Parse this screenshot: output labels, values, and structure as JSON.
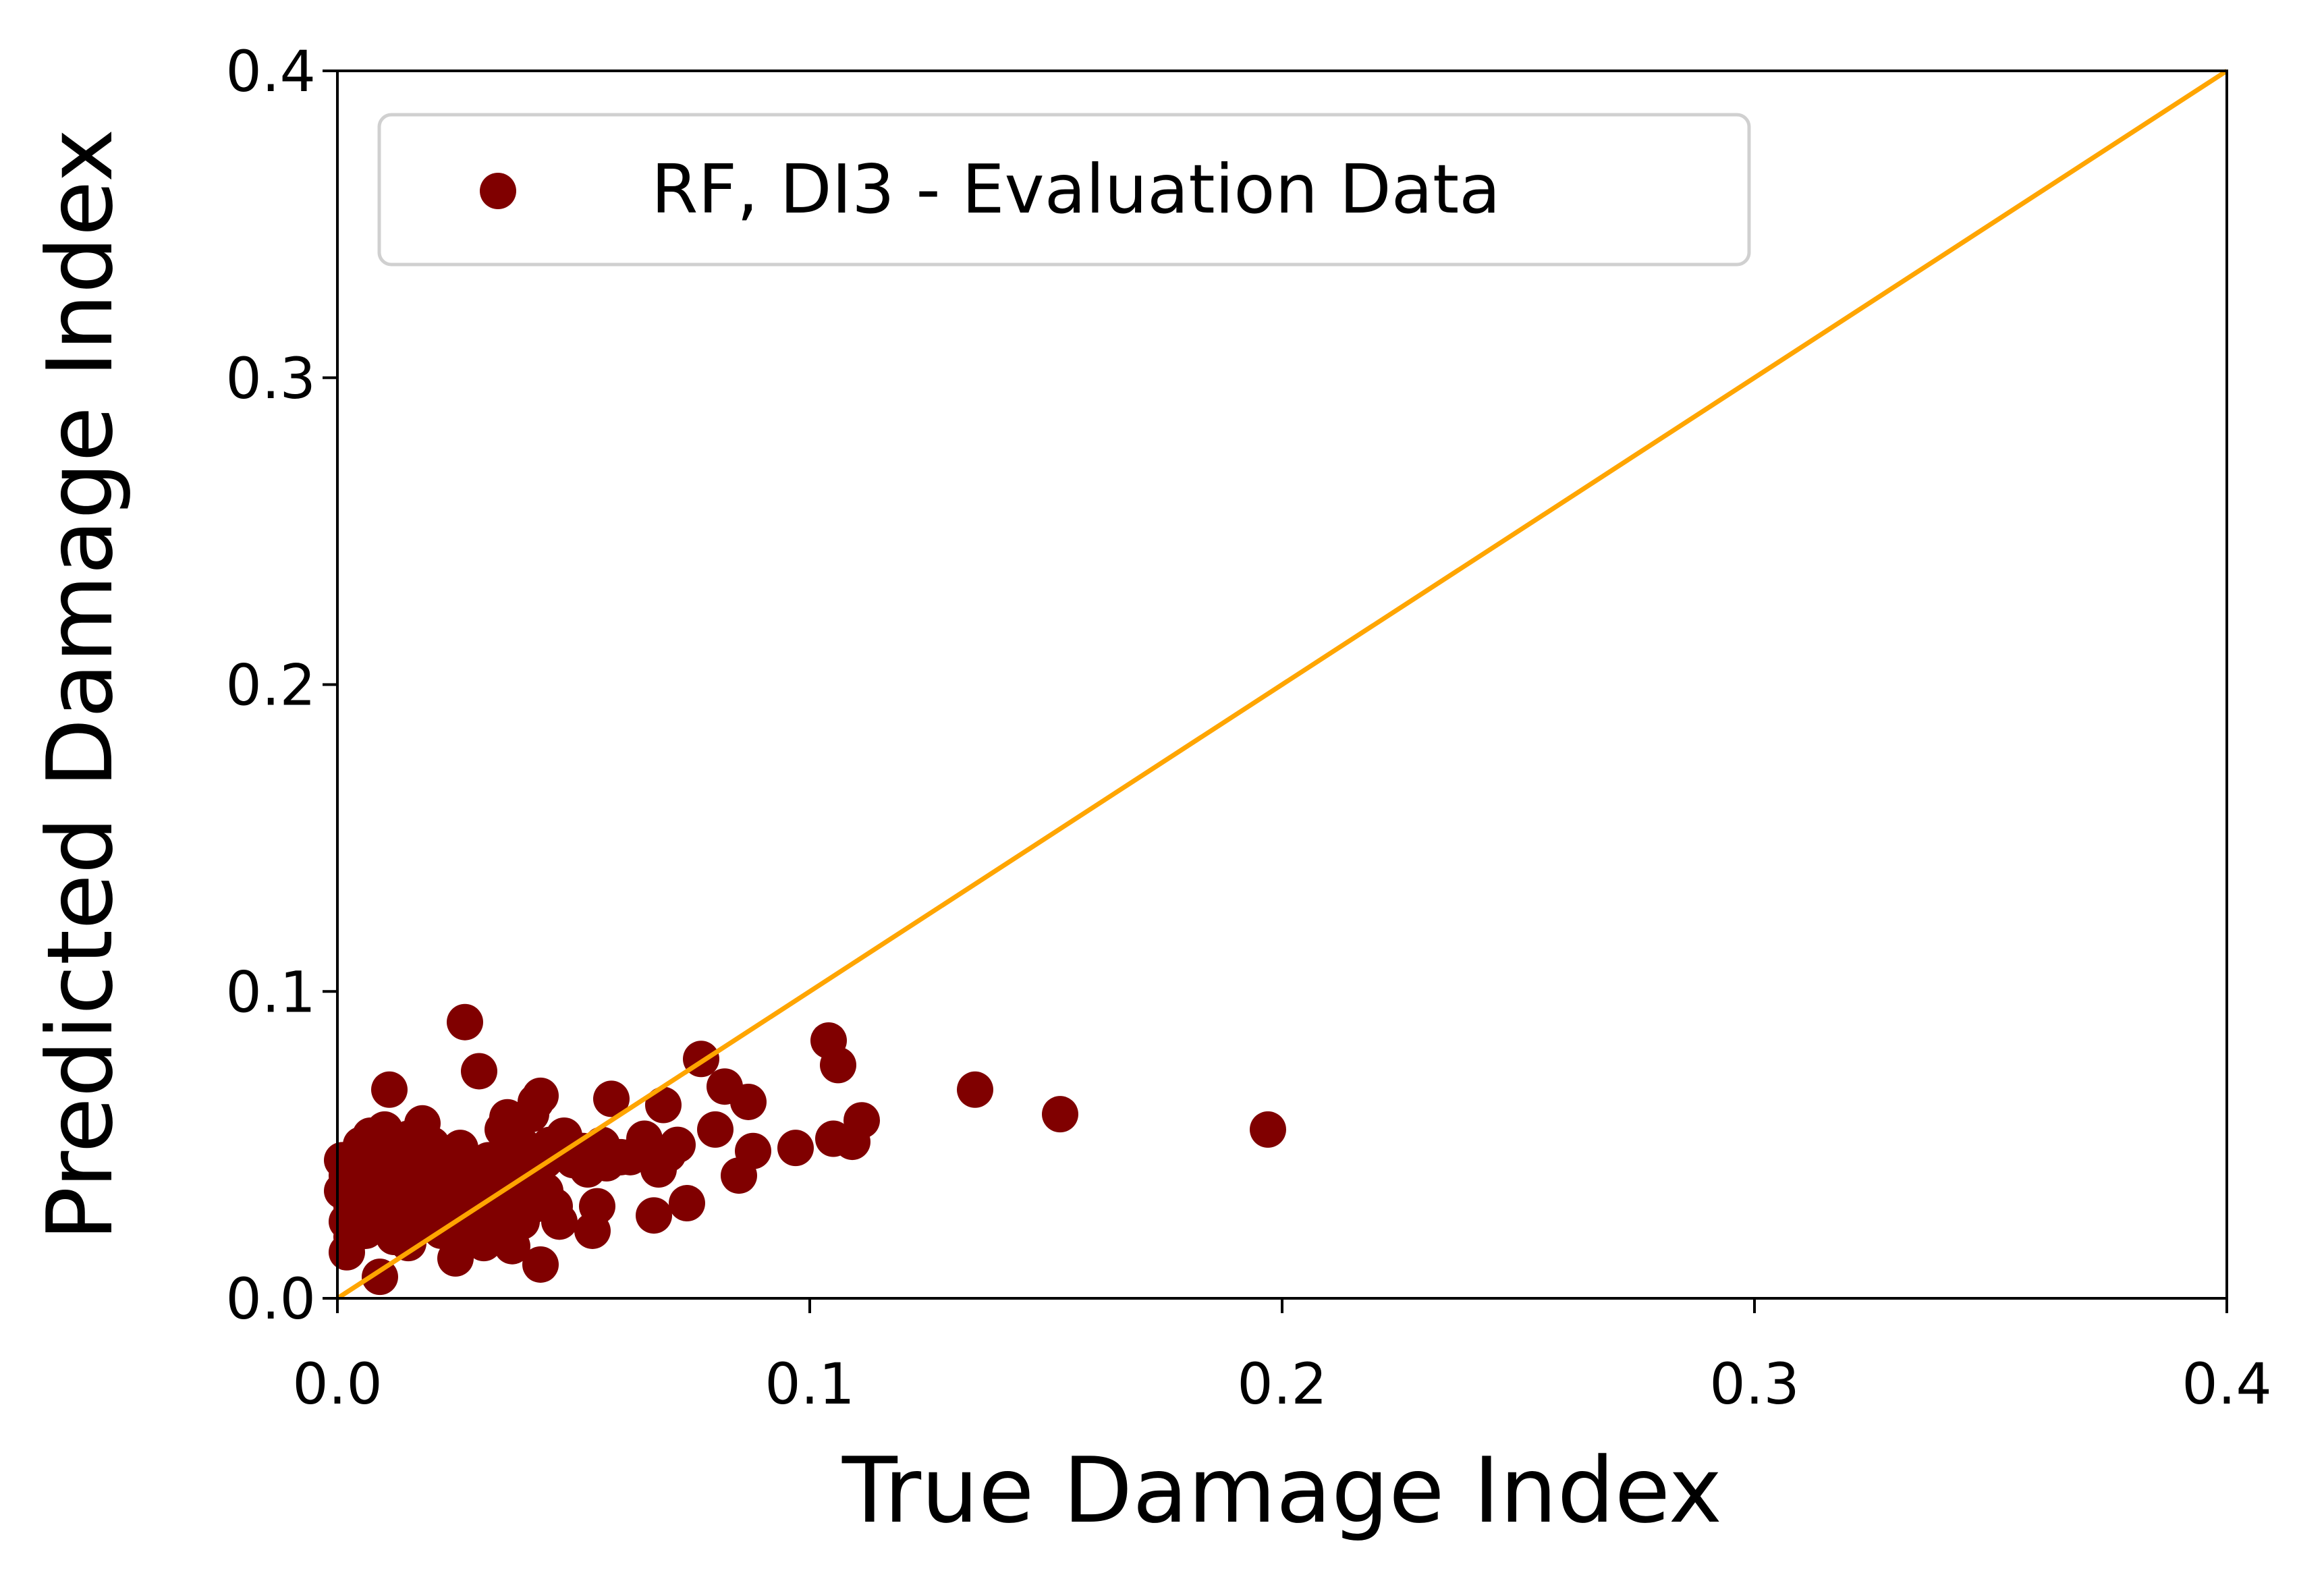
{
  "chart_data": {
    "type": "scatter",
    "xlabel": "True Damage Index",
    "ylabel": "Predicted Damage Index",
    "xlim": [
      0.0,
      0.4
    ],
    "ylim": [
      0.0,
      0.4
    ],
    "x_ticks": [
      "0.0",
      "0.1",
      "0.2",
      "0.3",
      "0.4"
    ],
    "y_ticks": [
      "0.0",
      "0.1",
      "0.2",
      "0.3",
      "0.4"
    ],
    "grid": false,
    "legend_position": "top-left",
    "colors": {
      "points": "#800000",
      "reference_line": "#FFA500"
    },
    "reference_line": {
      "x": [
        0.0,
        0.4
      ],
      "y": [
        0.0,
        0.4
      ]
    },
    "series": [
      {
        "name": "RF, DI3 - Evaluation Data",
        "points": [
          [
            0.001,
            0.045
          ],
          [
            0.001,
            0.035
          ],
          [
            0.002,
            0.025
          ],
          [
            0.002,
            0.015
          ],
          [
            0.002,
            0.04
          ],
          [
            0.003,
            0.03
          ],
          [
            0.003,
            0.02
          ],
          [
            0.004,
            0.045
          ],
          [
            0.004,
            0.035
          ],
          [
            0.005,
            0.028
          ],
          [
            0.005,
            0.05
          ],
          [
            0.006,
            0.04
          ],
          [
            0.006,
            0.022
          ],
          [
            0.007,
            0.035
          ],
          [
            0.007,
            0.053
          ],
          [
            0.008,
            0.045
          ],
          [
            0.008,
            0.03
          ],
          [
            0.009,
            0.007
          ],
          [
            0.009,
            0.038
          ],
          [
            0.01,
            0.055
          ],
          [
            0.01,
            0.025
          ],
          [
            0.011,
            0.042
          ],
          [
            0.011,
            0.068
          ],
          [
            0.012,
            0.033
          ],
          [
            0.012,
            0.02
          ],
          [
            0.013,
            0.047
          ],
          [
            0.013,
            0.028
          ],
          [
            0.014,
            0.038
          ],
          [
            0.015,
            0.052
          ],
          [
            0.015,
            0.018
          ],
          [
            0.016,
            0.04
          ],
          [
            0.016,
            0.03
          ],
          [
            0.017,
            0.035
          ],
          [
            0.017,
            0.045
          ],
          [
            0.018,
            0.057
          ],
          [
            0.018,
            0.025
          ],
          [
            0.019,
            0.042
          ],
          [
            0.019,
            0.033
          ],
          [
            0.02,
            0.05
          ],
          [
            0.02,
            0.038
          ],
          [
            0.021,
            0.028
          ],
          [
            0.021,
            0.045
          ],
          [
            0.022,
            0.035
          ],
          [
            0.022,
            0.022
          ],
          [
            0.023,
            0.042
          ],
          [
            0.023,
            0.03
          ],
          [
            0.024,
            0.037
          ],
          [
            0.024,
            0.047
          ],
          [
            0.025,
            0.013
          ],
          [
            0.025,
            0.032
          ],
          [
            0.026,
            0.049
          ],
          [
            0.026,
            0.04
          ],
          [
            0.027,
            0.09
          ],
          [
            0.027,
            0.028
          ],
          [
            0.028,
            0.036
          ],
          [
            0.028,
            0.044
          ],
          [
            0.029,
            0.02
          ],
          [
            0.029,
            0.033
          ],
          [
            0.03,
            0.074
          ],
          [
            0.03,
            0.04
          ],
          [
            0.031,
            0.018
          ],
          [
            0.031,
            0.03
          ],
          [
            0.032,
            0.045
          ],
          [
            0.032,
            0.025
          ],
          [
            0.033,
            0.038
          ],
          [
            0.033,
            0.032
          ],
          [
            0.034,
            0.042
          ],
          [
            0.034,
            0.022
          ],
          [
            0.035,
            0.055
          ],
          [
            0.035,
            0.028
          ],
          [
            0.036,
            0.059
          ],
          [
            0.036,
            0.035
          ],
          [
            0.037,
            0.017
          ],
          [
            0.037,
            0.045
          ],
          [
            0.038,
            0.04
          ],
          [
            0.038,
            0.03
          ],
          [
            0.039,
            0.05
          ],
          [
            0.039,
            0.025
          ],
          [
            0.04,
            0.035
          ],
          [
            0.04,
            0.044
          ],
          [
            0.041,
            0.06
          ],
          [
            0.041,
            0.03
          ],
          [
            0.042,
            0.064
          ],
          [
            0.042,
            0.04
          ],
          [
            0.043,
            0.011
          ],
          [
            0.043,
            0.066
          ],
          [
            0.044,
            0.045
          ],
          [
            0.044,
            0.035
          ],
          [
            0.045,
            0.05
          ],
          [
            0.046,
            0.03
          ],
          [
            0.047,
            0.025
          ],
          [
            0.048,
            0.053
          ],
          [
            0.05,
            0.045
          ],
          [
            0.052,
            0.048
          ],
          [
            0.053,
            0.042
          ],
          [
            0.054,
            0.022
          ],
          [
            0.055,
            0.03
          ],
          [
            0.056,
            0.05
          ],
          [
            0.057,
            0.044
          ],
          [
            0.058,
            0.065
          ],
          [
            0.06,
            0.046
          ],
          [
            0.062,
            0.046
          ],
          [
            0.065,
            0.052
          ],
          [
            0.067,
            0.027
          ],
          [
            0.068,
            0.042
          ],
          [
            0.069,
            0.063
          ],
          [
            0.07,
            0.047
          ],
          [
            0.072,
            0.05
          ],
          [
            0.074,
            0.031
          ],
          [
            0.077,
            0.078
          ],
          [
            0.08,
            0.055
          ],
          [
            0.082,
            0.069
          ],
          [
            0.085,
            0.04
          ],
          [
            0.087,
            0.064
          ],
          [
            0.088,
            0.048
          ],
          [
            0.097,
            0.049
          ],
          [
            0.104,
            0.084
          ],
          [
            0.105,
            0.052
          ],
          [
            0.106,
            0.076
          ],
          [
            0.109,
            0.051
          ],
          [
            0.111,
            0.058
          ],
          [
            0.135,
            0.068
          ],
          [
            0.153,
            0.06
          ],
          [
            0.197,
            0.055
          ]
        ]
      }
    ]
  }
}
